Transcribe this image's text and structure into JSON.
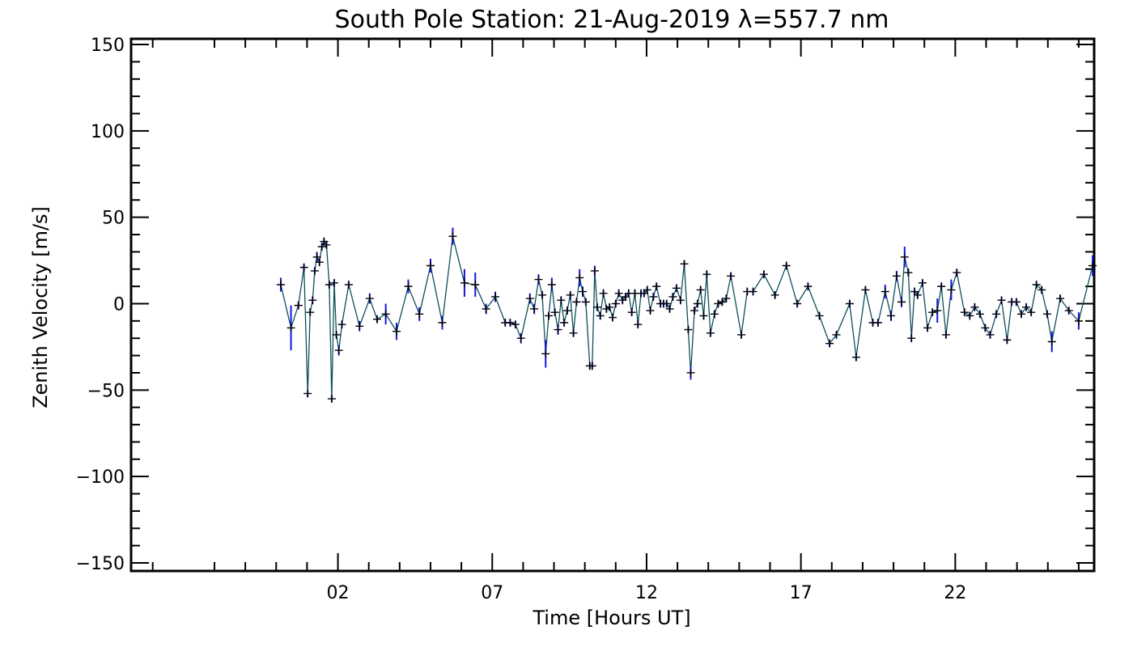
{
  "chart_data": {
    "type": "line",
    "title": "South Pole Station: 21-Aug-2019 λ=557.7 nm",
    "xlabel": "Time [Hours UT]",
    "ylabel": "Zenith Velocity [m/s]",
    "xlim": [
      -4.7,
      26.5
    ],
    "ylim": [
      -150,
      150
    ],
    "xticks": [
      {
        "value": 2,
        "label": "02"
      },
      {
        "value": 7,
        "label": "07"
      },
      {
        "value": 12,
        "label": "12"
      },
      {
        "value": 17,
        "label": "17"
      },
      {
        "value": 22,
        "label": "22"
      }
    ],
    "yticks": [
      {
        "value": 150,
        "label": "150"
      },
      {
        "value": 100,
        "label": "100"
      },
      {
        "value": 50,
        "label": "50"
      },
      {
        "value": 0,
        "label": "0"
      },
      {
        "value": -50,
        "label": "−50"
      },
      {
        "value": -100,
        "label": "−100"
      },
      {
        "value": -150,
        "label": "−150"
      }
    ],
    "colors": {
      "line": "#0d4f5a",
      "error_bar": "#1515e0",
      "marker": "#000000"
    },
    "series": [
      {
        "name": "zenith velocity",
        "points": [
          {
            "x": 0.15,
            "y": 11,
            "err": 4
          },
          {
            "x": 0.48,
            "y": -14,
            "err": 13
          },
          {
            "x": 0.72,
            "y": -1,
            "err": 2
          },
          {
            "x": 0.9,
            "y": 21,
            "err": 2
          },
          {
            "x": 1.02,
            "y": -52,
            "err": 2
          },
          {
            "x": 1.1,
            "y": -5,
            "err": 2
          },
          {
            "x": 1.18,
            "y": 2,
            "err": 2
          },
          {
            "x": 1.25,
            "y": 19,
            "err": 2
          },
          {
            "x": 1.32,
            "y": 27,
            "err": 3
          },
          {
            "x": 1.4,
            "y": 24,
            "err": 2
          },
          {
            "x": 1.48,
            "y": 33,
            "err": 2
          },
          {
            "x": 1.55,
            "y": 36,
            "err": 2
          },
          {
            "x": 1.63,
            "y": 34,
            "err": 2
          },
          {
            "x": 1.72,
            "y": 11,
            "err": 2
          },
          {
            "x": 1.8,
            "y": -55,
            "err": 2
          },
          {
            "x": 1.88,
            "y": 12,
            "err": 2
          },
          {
            "x": 1.95,
            "y": -18,
            "err": 2
          },
          {
            "x": 2.03,
            "y": -27,
            "err": 3
          },
          {
            "x": 2.13,
            "y": -12,
            "err": 2
          },
          {
            "x": 2.35,
            "y": 11,
            "err": 2
          },
          {
            "x": 2.7,
            "y": -13,
            "err": 3
          },
          {
            "x": 3.03,
            "y": 3,
            "err": 3
          },
          {
            "x": 3.27,
            "y": -9,
            "err": 2
          },
          {
            "x": 3.55,
            "y": -6,
            "err": 6
          },
          {
            "x": 3.9,
            "y": -16,
            "err": 5
          },
          {
            "x": 4.28,
            "y": 10,
            "err": 4
          },
          {
            "x": 4.64,
            "y": -6,
            "err": 4
          },
          {
            "x": 5.0,
            "y": 22,
            "err": 4
          },
          {
            "x": 5.38,
            "y": -11,
            "err": 4
          },
          {
            "x": 5.72,
            "y": 39,
            "err": 5
          },
          {
            "x": 6.1,
            "y": 12,
            "err": 8
          },
          {
            "x": 6.45,
            "y": 11,
            "err": 7
          },
          {
            "x": 6.8,
            "y": -3,
            "err": 3
          },
          {
            "x": 7.1,
            "y": 4,
            "err": 3
          },
          {
            "x": 7.42,
            "y": -11,
            "err": 2
          },
          {
            "x": 7.58,
            "y": -11,
            "err": 2
          },
          {
            "x": 7.75,
            "y": -12,
            "err": 2
          },
          {
            "x": 7.93,
            "y": -20,
            "err": 3
          },
          {
            "x": 8.22,
            "y": 3,
            "err": 3
          },
          {
            "x": 8.36,
            "y": -3,
            "err": 3
          },
          {
            "x": 8.5,
            "y": 14,
            "err": 3
          },
          {
            "x": 8.62,
            "y": 5,
            "err": 2
          },
          {
            "x": 8.73,
            "y": -29,
            "err": 8
          },
          {
            "x": 8.83,
            "y": -7,
            "err": 2
          },
          {
            "x": 8.93,
            "y": 11,
            "err": 4
          },
          {
            "x": 9.03,
            "y": -5,
            "err": 2
          },
          {
            "x": 9.13,
            "y": -15,
            "err": 3
          },
          {
            "x": 9.23,
            "y": 2,
            "err": 2
          },
          {
            "x": 9.33,
            "y": -11,
            "err": 2
          },
          {
            "x": 9.43,
            "y": -4,
            "err": 2
          },
          {
            "x": 9.53,
            "y": 5,
            "err": 2
          },
          {
            "x": 9.63,
            "y": -17,
            "err": 2
          },
          {
            "x": 9.73,
            "y": 1,
            "err": 2
          },
          {
            "x": 9.83,
            "y": 15,
            "err": 5
          },
          {
            "x": 9.93,
            "y": 7,
            "err": 3
          },
          {
            "x": 10.03,
            "y": 1,
            "err": 2
          },
          {
            "x": 10.16,
            "y": -36,
            "err": 2
          },
          {
            "x": 10.24,
            "y": -36,
            "err": 2
          },
          {
            "x": 10.32,
            "y": 19,
            "err": 3
          },
          {
            "x": 10.4,
            "y": -2,
            "err": 2
          },
          {
            "x": 10.5,
            "y": -7,
            "err": 2
          },
          {
            "x": 10.6,
            "y": 6,
            "err": 2
          },
          {
            "x": 10.7,
            "y": -3,
            "err": 2
          },
          {
            "x": 10.8,
            "y": -2,
            "err": 2
          },
          {
            "x": 10.9,
            "y": -8,
            "err": 2
          },
          {
            "x": 11.0,
            "y": 0,
            "err": 2
          },
          {
            "x": 11.1,
            "y": 6,
            "err": 2
          },
          {
            "x": 11.22,
            "y": 2,
            "err": 2
          },
          {
            "x": 11.32,
            "y": 4,
            "err": 2
          },
          {
            "x": 11.42,
            "y": 6,
            "err": 2
          },
          {
            "x": 11.52,
            "y": -5,
            "err": 2
          },
          {
            "x": 11.62,
            "y": 6,
            "err": 2
          },
          {
            "x": 11.72,
            "y": -12,
            "err": 2
          },
          {
            "x": 11.82,
            "y": 6,
            "err": 2
          },
          {
            "x": 11.92,
            "y": 6,
            "err": 2
          },
          {
            "x": 12.02,
            "y": 8,
            "err": 2
          },
          {
            "x": 12.12,
            "y": -4,
            "err": 2
          },
          {
            "x": 12.22,
            "y": 4,
            "err": 2
          },
          {
            "x": 12.32,
            "y": 10,
            "err": 2
          },
          {
            "x": 12.45,
            "y": 0,
            "err": 2
          },
          {
            "x": 12.55,
            "y": 0,
            "err": 2
          },
          {
            "x": 12.65,
            "y": 0,
            "err": 2
          },
          {
            "x": 12.75,
            "y": -3,
            "err": 2
          },
          {
            "x": 12.85,
            "y": 4,
            "err": 2
          },
          {
            "x": 12.97,
            "y": 9,
            "err": 2
          },
          {
            "x": 13.1,
            "y": 2,
            "err": 2
          },
          {
            "x": 13.22,
            "y": 23,
            "err": 2
          },
          {
            "x": 13.35,
            "y": -15,
            "err": 2
          },
          {
            "x": 13.43,
            "y": -40,
            "err": 4
          },
          {
            "x": 13.55,
            "y": -4,
            "err": 2
          },
          {
            "x": 13.65,
            "y": 0,
            "err": 2
          },
          {
            "x": 13.75,
            "y": 8,
            "err": 2
          },
          {
            "x": 13.85,
            "y": -7,
            "err": 2
          },
          {
            "x": 13.95,
            "y": 17,
            "err": 2
          },
          {
            "x": 14.07,
            "y": -17,
            "err": 2
          },
          {
            "x": 14.2,
            "y": -6,
            "err": 2
          },
          {
            "x": 14.32,
            "y": 0,
            "err": 2
          },
          {
            "x": 14.45,
            "y": 1,
            "err": 2
          },
          {
            "x": 14.58,
            "y": 3,
            "err": 2
          },
          {
            "x": 14.73,
            "y": 16,
            "err": 2
          },
          {
            "x": 15.07,
            "y": -18,
            "err": 2
          },
          {
            "x": 15.26,
            "y": 7,
            "err": 2
          },
          {
            "x": 15.45,
            "y": 7,
            "err": 2
          },
          {
            "x": 15.8,
            "y": 17,
            "err": 2
          },
          {
            "x": 16.16,
            "y": 5,
            "err": 2
          },
          {
            "x": 16.53,
            "y": 22,
            "err": 2
          },
          {
            "x": 16.88,
            "y": 0,
            "err": 2
          },
          {
            "x": 17.23,
            "y": 10,
            "err": 2
          },
          {
            "x": 17.6,
            "y": -7,
            "err": 2
          },
          {
            "x": 17.93,
            "y": -23,
            "err": 2
          },
          {
            "x": 18.15,
            "y": -18,
            "err": 2
          },
          {
            "x": 18.58,
            "y": 0,
            "err": 2
          },
          {
            "x": 18.79,
            "y": -31,
            "err": 2
          },
          {
            "x": 19.09,
            "y": 8,
            "err": 2
          },
          {
            "x": 19.33,
            "y": -11,
            "err": 2
          },
          {
            "x": 19.5,
            "y": -11,
            "err": 2
          },
          {
            "x": 19.73,
            "y": 7,
            "err": 4
          },
          {
            "x": 19.92,
            "y": -7,
            "err": 3
          },
          {
            "x": 20.1,
            "y": 16,
            "err": 3
          },
          {
            "x": 20.26,
            "y": 1,
            "err": 3
          },
          {
            "x": 20.36,
            "y": 27,
            "err": 6
          },
          {
            "x": 20.48,
            "y": 18,
            "err": 2
          },
          {
            "x": 20.58,
            "y": -20,
            "err": 2
          },
          {
            "x": 20.68,
            "y": 7,
            "err": 2
          },
          {
            "x": 20.78,
            "y": 5,
            "err": 2
          },
          {
            "x": 20.94,
            "y": 12,
            "err": 2
          },
          {
            "x": 21.1,
            "y": -14,
            "err": 2
          },
          {
            "x": 21.26,
            "y": -5,
            "err": 2
          },
          {
            "x": 21.42,
            "y": -4,
            "err": 7
          },
          {
            "x": 21.55,
            "y": 10,
            "err": 2
          },
          {
            "x": 21.7,
            "y": -18,
            "err": 2
          },
          {
            "x": 21.87,
            "y": 8,
            "err": 6
          },
          {
            "x": 22.05,
            "y": 18,
            "err": 2
          },
          {
            "x": 22.3,
            "y": -5,
            "err": 2
          },
          {
            "x": 22.47,
            "y": -7,
            "err": 2
          },
          {
            "x": 22.63,
            "y": -2,
            "err": 2
          },
          {
            "x": 22.8,
            "y": -6,
            "err": 2
          },
          {
            "x": 22.97,
            "y": -14,
            "err": 2
          },
          {
            "x": 23.13,
            "y": -18,
            "err": 2
          },
          {
            "x": 23.33,
            "y": -6,
            "err": 2
          },
          {
            "x": 23.5,
            "y": 2,
            "err": 2
          },
          {
            "x": 23.68,
            "y": -21,
            "err": 2
          },
          {
            "x": 23.83,
            "y": 1,
            "err": 2
          },
          {
            "x": 23.98,
            "y": 1,
            "err": 2
          },
          {
            "x": 24.14,
            "y": -6,
            "err": 2
          },
          {
            "x": 24.3,
            "y": -2,
            "err": 2
          },
          {
            "x": 24.46,
            "y": -5,
            "err": 2
          },
          {
            "x": 24.63,
            "y": 11,
            "err": 2
          },
          {
            "x": 24.8,
            "y": 8,
            "err": 2
          },
          {
            "x": 24.98,
            "y": -6,
            "err": 2
          },
          {
            "x": 25.13,
            "y": -22,
            "err": 6
          },
          {
            "x": 25.4,
            "y": 3,
            "err": 2
          },
          {
            "x": 25.68,
            "y": -4,
            "err": 2
          },
          {
            "x": 26.0,
            "y": -10,
            "err": 5
          },
          {
            "x": 26.45,
            "y": 22,
            "err": 6
          }
        ]
      }
    ]
  }
}
